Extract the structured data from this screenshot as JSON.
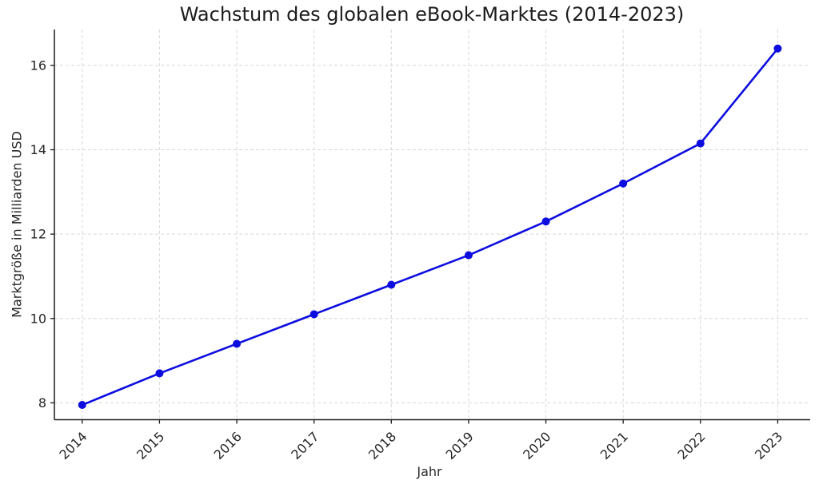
{
  "figure": {
    "title": "Wachstum des globalen eBook-Marktes (2014-2023)",
    "background_color": "#ffffff",
    "text_color": "#262626"
  },
  "chart_data": {
    "type": "line",
    "title": "Wachstum des globalen eBook-Marktes (2014-2023)",
    "xlabel": "Jahr",
    "ylabel": "Marktgröße in Milliarden USD",
    "x": [
      2014,
      2015,
      2016,
      2017,
      2018,
      2019,
      2020,
      2021,
      2022,
      2023
    ],
    "values": [
      7.95,
      8.7,
      9.4,
      10.1,
      10.8,
      11.5,
      12.3,
      13.2,
      14.15,
      16.4
    ],
    "xticks": [
      2014,
      2015,
      2016,
      2017,
      2018,
      2019,
      2020,
      2021,
      2022,
      2023
    ],
    "yticks": [
      8,
      10,
      12,
      14,
      16
    ],
    "xlim": [
      2013.64,
      2023.42
    ],
    "ylim": [
      7.6,
      16.85
    ],
    "grid": true,
    "grid_line_style": "dashed",
    "grid_color": "#d8d8d8",
    "legend": false,
    "line_color": "#0d0de0",
    "marker": "circle",
    "marker_size": 5,
    "line_width": 2.6
  }
}
